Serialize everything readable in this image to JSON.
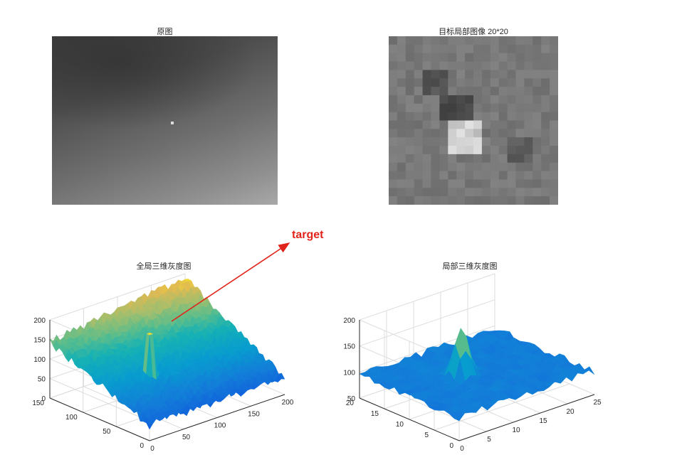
{
  "annotation": {
    "label": "target",
    "color": "#e0241b"
  },
  "chart_data": [
    {
      "type": "heatmap",
      "title": "原图",
      "colormap": "gray",
      "description": "grayscale infrared background image with a small bright point target",
      "axes_visible": false
    },
    {
      "type": "heatmap",
      "title": "目标局部图像 20*20",
      "colormap": "gray",
      "grid_size": [
        20,
        20
      ],
      "axes_visible": false
    },
    {
      "type": "surface",
      "title": "全局三维灰度图",
      "colormap": "parula",
      "xlim": [
        0,
        200
      ],
      "ylim": [
        0,
        150
      ],
      "zlim": [
        0,
        200
      ],
      "xticks": [
        "0",
        "50",
        "100",
        "150",
        "200"
      ],
      "yticks": [
        "0",
        "50",
        "100",
        "150"
      ],
      "zticks": [
        "0",
        "50",
        "100",
        "150",
        "200"
      ],
      "grid": true,
      "peak": {
        "label": "target",
        "z": 200
      }
    },
    {
      "type": "surface",
      "title": "局部三维灰度图",
      "colormap": "parula",
      "xlim": [
        0,
        25
      ],
      "ylim": [
        0,
        20
      ],
      "zlim": [
        50,
        200
      ],
      "xticks": [
        "0",
        "5",
        "10",
        "15",
        "20",
        "25"
      ],
      "yticks": [
        "0",
        "5",
        "10",
        "15",
        "20"
      ],
      "zticks": [
        "50",
        "100",
        "150",
        "200"
      ],
      "grid": true,
      "peak": {
        "z": 190
      }
    }
  ]
}
